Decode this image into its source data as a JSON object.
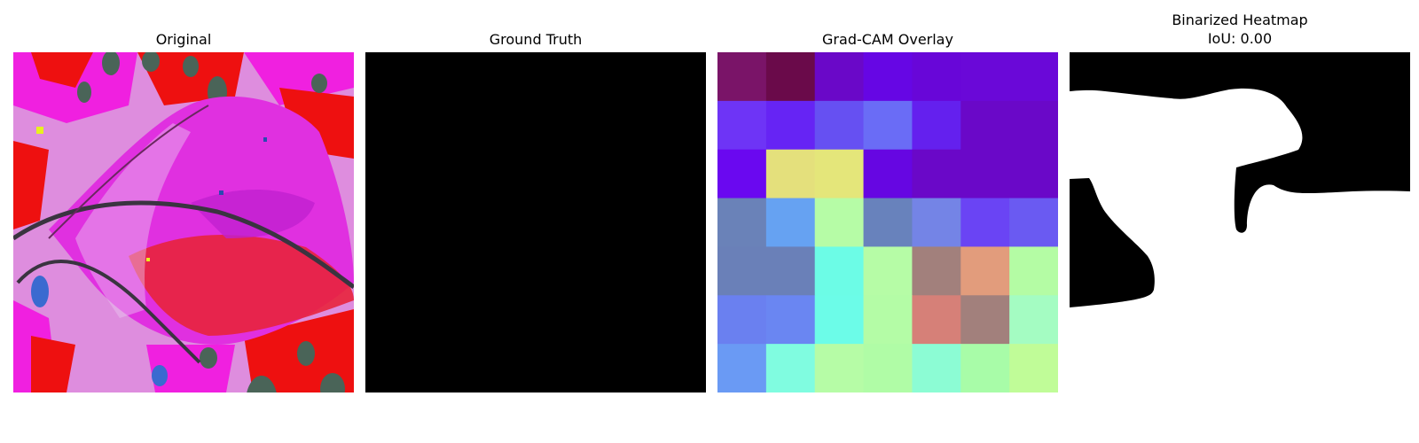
{
  "panels": [
    {
      "title": "Original"
    },
    {
      "title": "Ground Truth"
    },
    {
      "title": "Grad-CAM Overlay"
    },
    {
      "title": "Binarized Heatmap",
      "subtitle": "IoU: 0.00"
    }
  ],
  "gradcam_grid": {
    "rows": 7,
    "cols": 7,
    "colors": [
      [
        "#7a1468",
        "#6a0a4a",
        "#6a08c8",
        "#6606e4",
        "#6806d8",
        "#6a08d8",
        "#6a08d8"
      ],
      [
        "#6e34f6",
        "#6624f4",
        "#6650f2",
        "#6a6cf6",
        "#6420ee",
        "#6a08c8",
        "#6a08c8"
      ],
      [
        "#6a08f0",
        "#e4e07c",
        "#e4e67a",
        "#6606e2",
        "#6a08c8",
        "#6a08c8",
        "#6a08c8"
      ],
      [
        "#6a82b8",
        "#66a2f2",
        "#b6fca6",
        "#6882bc",
        "#7484e6",
        "#6a44f4",
        "#6a5af2"
      ],
      [
        "#6a80b8",
        "#6a80b8",
        "#6cfce6",
        "#b6fca6",
        "#a2807c",
        "#e29c7c",
        "#b4fca4"
      ],
      [
        "#6a80f0",
        "#6a86f2",
        "#6cfce8",
        "#b4fca6",
        "#d68078",
        "#a2807c",
        "#a4fcc2"
      ],
      [
        "#6a9af4",
        "#80fce0",
        "#b6fca6",
        "#b0fca6",
        "#8cfcd4",
        "#a8fca8",
        "#c0fc98"
      ]
    ]
  }
}
